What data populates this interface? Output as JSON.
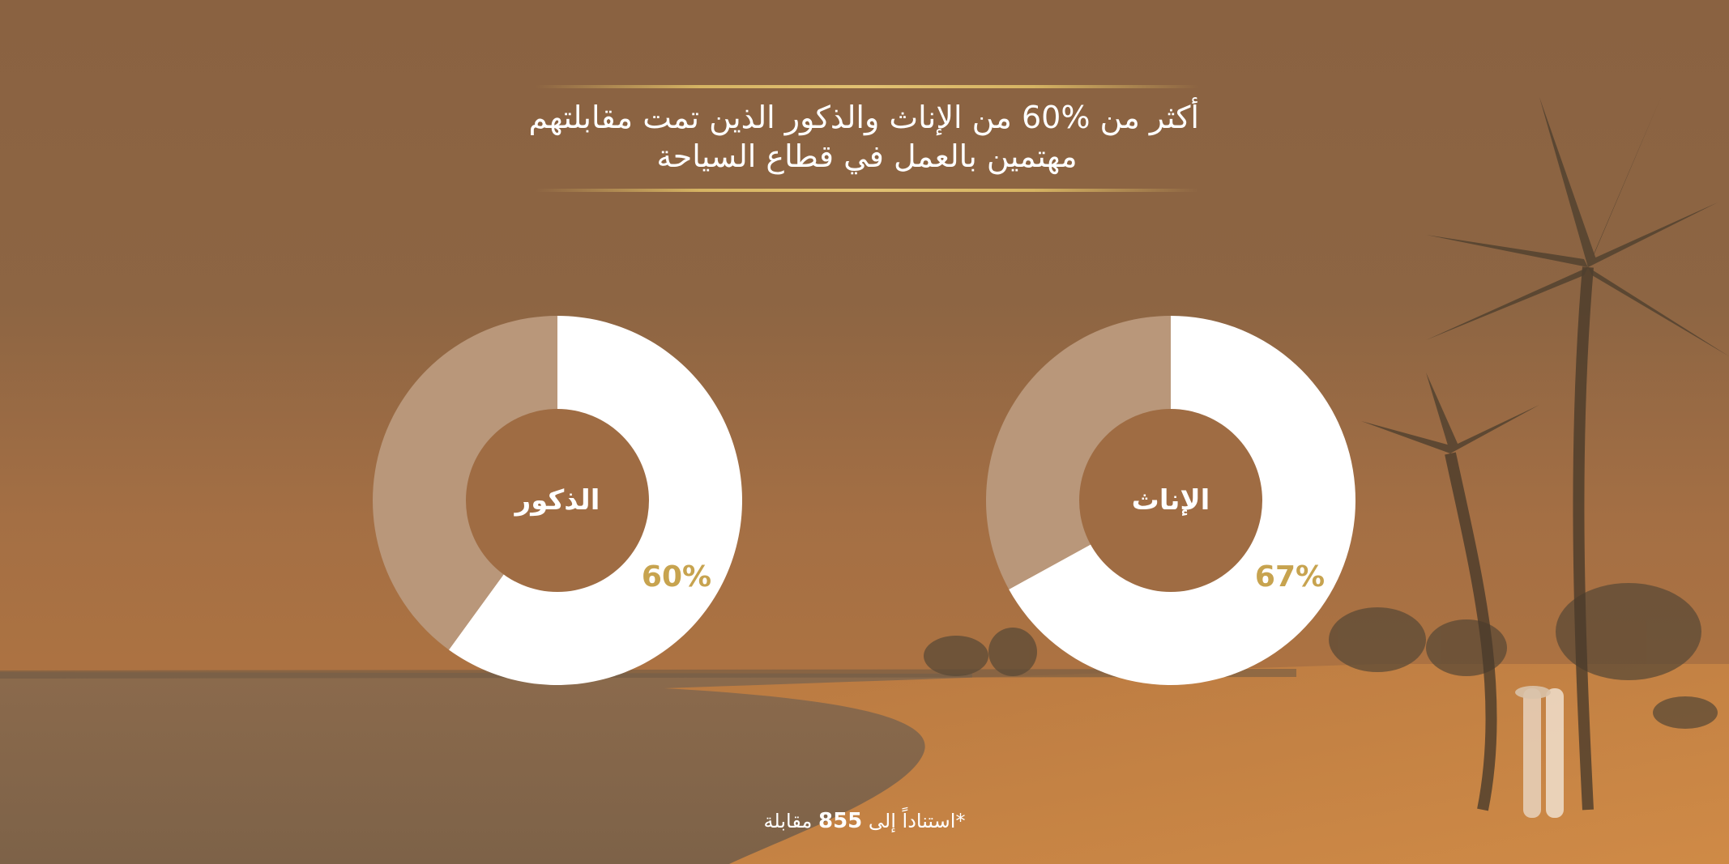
{
  "title": {
    "line1": "أكثر من %60 من الإناث والذكور الذين تمت مقابلتهم",
    "line2": "مهتمين بالعمل في قطاع السياحة"
  },
  "colors": {
    "filled": "#ffffff",
    "remainder": "#b9977a",
    "hole": "#9f6c43",
    "percent_text": "#c7a34f"
  },
  "chart_data": [
    {
      "type": "pie",
      "variant": "donut",
      "center_label": "الإناث",
      "value_label": "67%",
      "values": [
        67,
        33
      ]
    },
    {
      "type": "pie",
      "variant": "donut",
      "center_label": "الذكور",
      "value_label": "60%",
      "values": [
        60,
        40
      ]
    }
  ],
  "footnote": {
    "prefix": "*استناداً إلى",
    "number": "855",
    "suffix": "مقابلة"
  }
}
